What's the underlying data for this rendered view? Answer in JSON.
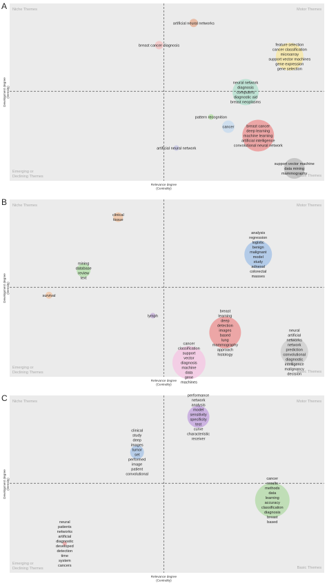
{
  "chart_data": [
    {
      "type": "scatter",
      "panel": "A",
      "title": "",
      "xlabel": [
        "Relevance degree",
        "(Centrality)"
      ],
      "ylabel": [
        "Development degree",
        "(Density)"
      ],
      "quadrants": {
        "top_left": "Niche Themes",
        "top_right": "Motor Themes",
        "bottom_left": [
          "Emerging or",
          "Declining Themes"
        ],
        "bottom_right": "Basic Themes"
      },
      "grid": false,
      "clusters": [
        {
          "x": 0.585,
          "y": 0.89,
          "size": 6,
          "color": "#e8b49a",
          "terms": [
            "artificial neural networks"
          ]
        },
        {
          "x": 0.475,
          "y": 0.765,
          "size": 6,
          "color": "#f3c6c6",
          "terms": [
            "breast cancer diagnosis"
          ]
        },
        {
          "x": 0.89,
          "y": 0.7,
          "size": 20,
          "color": "#f7e8a8",
          "terms": [
            "feature selection",
            "cancer classification",
            "microarray",
            "support vector machines",
            "gene expression",
            "gene selection"
          ]
        },
        {
          "x": 0.75,
          "y": 0.5,
          "size": 19,
          "color": "#b7e0d0",
          "terms": [
            "neural network",
            "diagnosis",
            "computers",
            "diagnostic aid",
            "breast neoplasms"
          ]
        },
        {
          "x": 0.64,
          "y": 0.36,
          "size": 4,
          "color": "#b7e0a8",
          "terms": [
            "pattern recognition"
          ]
        },
        {
          "x": 0.695,
          "y": 0.305,
          "size": 9,
          "color": "#c9dcef",
          "terms": [
            "cancer"
          ]
        },
        {
          "x": 0.79,
          "y": 0.255,
          "size": 23,
          "color": "#ec9a9a",
          "terms": [
            "breast cancer",
            "deep learning",
            "machine learning",
            "artificial intelligence",
            "convolutional neural network"
          ]
        },
        {
          "x": 0.53,
          "y": 0.185,
          "size": 4,
          "color": "#c9c9e6",
          "terms": [
            "artificial neural network"
          ]
        },
        {
          "x": 0.905,
          "y": 0.07,
          "size": 15,
          "color": "#bfbfbf",
          "terms": [
            "support vector machine",
            "data mining",
            "mammography"
          ]
        }
      ]
    },
    {
      "type": "scatter",
      "panel": "B",
      "title": "",
      "xlabel": [
        "Relevance degree",
        "(Centrality)"
      ],
      "ylabel": [
        "Development degree",
        "(Density)"
      ],
      "quadrants": {
        "top_left": "Niche Themes",
        "top_right": "Motor Themes",
        "bottom_left": [
          "Emerging or",
          "Declining Themes"
        ],
        "bottom_right": "Basic Themes"
      },
      "grid": false,
      "clusters": [
        {
          "x": 0.345,
          "y": 0.9,
          "size": 7,
          "color": "#f2c8a8",
          "terms": [
            "clinical",
            "tissue"
          ]
        },
        {
          "x": 0.79,
          "y": 0.69,
          "size": 20,
          "color": "#a9c6e8",
          "terms": [
            "analysis",
            "regression",
            "logistic",
            "benign",
            "malignant",
            "model",
            "study",
            "adnexal",
            "colorectal",
            "masses"
          ]
        },
        {
          "x": 0.235,
          "y": 0.6,
          "size": 10,
          "color": "#b7dfae",
          "terms": [
            "mining",
            "database",
            "review",
            "text"
          ]
        },
        {
          "x": 0.125,
          "y": 0.46,
          "size": 5,
          "color": "#f2c8a8",
          "terms": [
            "survival"
          ]
        },
        {
          "x": 0.455,
          "y": 0.345,
          "size": 4,
          "color": "#c9b5dc",
          "terms": [
            "lymph"
          ]
        },
        {
          "x": 0.685,
          "y": 0.25,
          "size": 23,
          "color": "#ec9a9a",
          "terms": [
            "breast",
            "learning",
            "deep",
            "detection",
            "images",
            "based",
            "lung",
            "mammography",
            "approach",
            "histology"
          ]
        },
        {
          "x": 0.57,
          "y": 0.08,
          "size": 24,
          "color": "#f4c9e4",
          "terms": [
            "cancer",
            "classification",
            "support",
            "vector",
            "diagnosis",
            "machine",
            "data",
            "gene",
            "machines"
          ]
        },
        {
          "x": 0.905,
          "y": 0.14,
          "size": 20,
          "color": "#cfcfcf",
          "terms": [
            "neural",
            "artificial",
            "networks",
            "network",
            "prediction",
            "convolutional",
            "diagnostic",
            "intelligence",
            "malignancy",
            "decision"
          ]
        }
      ]
    },
    {
      "type": "scatter",
      "panel": "C",
      "title": "",
      "xlabel": [
        "Relevance degree",
        "(Centrality)"
      ],
      "ylabel": [
        "Development degree",
        "(Density)"
      ],
      "quadrants": {
        "top_left": "Niche Themes",
        "top_right": "Motor Themes",
        "bottom_left": [
          "Emerging or",
          "Declining Themes"
        ],
        "bottom_right": "Basic Themes"
      },
      "grid": false,
      "clusters": [
        {
          "x": 0.6,
          "y": 0.88,
          "size": 16,
          "color": "#c7a9df",
          "terms": [
            "performance",
            "network",
            "analysis",
            "model",
            "sensitivity",
            "specificity",
            "test",
            "curve",
            "characteristic",
            "receiver"
          ]
        },
        {
          "x": 0.405,
          "y": 0.68,
          "size": 10,
          "color": "#aec8e8",
          "terms": [
            "clinical",
            "study",
            "deep",
            "images",
            "tumor",
            "set",
            "performed",
            "image",
            "patient",
            "convolutional"
          ]
        },
        {
          "x": 0.835,
          "y": 0.41,
          "size": 25,
          "color": "#b8dcae",
          "terms": [
            "cancer",
            "results",
            "methods",
            "data",
            "learning",
            "accuracy",
            "classification",
            "diagnosis",
            "breast",
            "based"
          ]
        },
        {
          "x": 0.175,
          "y": 0.165,
          "size": 3,
          "color": "#e9a7a7",
          "terms": [
            "neural",
            "patients",
            "networks",
            "artificial",
            "diagnostic",
            "developed",
            "detection",
            "time",
            "system",
            "cancers"
          ]
        }
      ]
    }
  ]
}
